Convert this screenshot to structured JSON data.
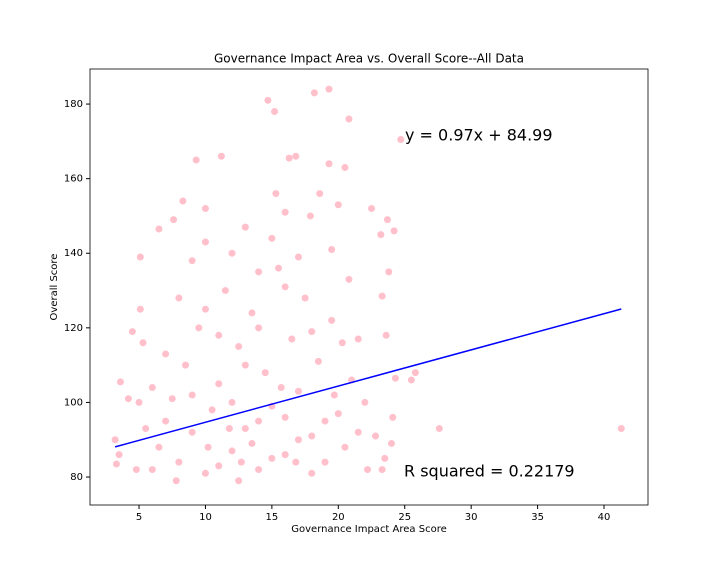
{
  "chart_data": {
    "type": "scatter",
    "title": "Governance Impact Area vs. Overall Score--All Data",
    "x_label": "Governance Impact Area Score",
    "y_label": "Overall Score",
    "color": "#ffc0cb",
    "x": [
      41.3,
      27.6,
      24.7,
      19.3,
      18.2,
      14.7,
      15.2,
      20.8,
      9.3,
      11.2,
      16.8,
      16.3,
      19.3,
      20.5,
      15.3,
      18.6,
      20,
      22.5,
      23.7,
      24.2,
      23.2,
      6.5,
      7.6,
      8.3,
      10,
      3.6,
      3.2,
      3.3,
      3.5,
      4.2,
      4.5,
      5.1,
      5.1,
      5.3,
      25.5,
      25.8,
      22.2,
      23.3,
      23.5,
      24,
      22.8,
      24.1,
      24.3,
      23.6,
      23.3,
      23.8,
      21.5,
      20.8,
      19.5,
      17.9,
      16,
      6,
      6.5,
      7,
      7.5,
      8,
      8.5,
      9,
      9.5,
      10,
      10.5,
      11,
      11.5,
      12,
      12.5,
      13,
      13.5,
      14,
      14.5,
      15,
      15.5,
      16,
      16.5,
      17,
      17.5,
      18,
      18.5,
      19,
      19.5,
      20,
      20.5,
      21,
      8,
      9,
      10,
      11,
      12,
      13,
      14,
      15,
      16,
      17,
      18,
      19,
      7,
      6,
      5.5,
      4.8,
      5,
      12,
      13,
      14,
      15,
      11,
      10,
      9,
      17,
      18,
      16,
      14,
      12.7,
      15.7,
      13.5,
      11.8,
      10.2,
      16.8,
      19.7,
      20.3,
      21.5,
      22,
      7.8,
      12.5
    ],
    "y": [
      93,
      93,
      170.5,
      184,
      183,
      181,
      178,
      176,
      165,
      166,
      166,
      165.5,
      164,
      163,
      156,
      156,
      153,
      152,
      149,
      146,
      145,
      146.5,
      149,
      154,
      152,
      105.5,
      90,
      83.5,
      86,
      101,
      119,
      139,
      125,
      116,
      106,
      108,
      82,
      82,
      85,
      89,
      91,
      96,
      106.5,
      118,
      128.5,
      135,
      117,
      133,
      141,
      150,
      151,
      82,
      88,
      95,
      101,
      84,
      110,
      92,
      120,
      81,
      98,
      105,
      130,
      87,
      115,
      93,
      124,
      82,
      108,
      99,
      136,
      86,
      117,
      103,
      128,
      91,
      111,
      84,
      122,
      97,
      88,
      106,
      128,
      138,
      143,
      83,
      140,
      147,
      135,
      144,
      131,
      139,
      119,
      95,
      113,
      104,
      93,
      82,
      100,
      100,
      110,
      95,
      85,
      118,
      125,
      102,
      90,
      81,
      96,
      120,
      84,
      104,
      89,
      93,
      88,
      84,
      102,
      116,
      92,
      100,
      79,
      79
    ],
    "fit": {
      "x": [
        3.2,
        41.3
      ],
      "y": [
        88.09,
        125.05
      ],
      "color": "#0000ff"
    },
    "annotations": [
      "y = 0.97x + 84.99",
      "R squared = 0.22179"
    ],
    "xlim": [
      1.31,
      43.31
    ],
    "ylim": [
      72.5,
      189.4
    ],
    "xticks": [
      5,
      10,
      15,
      20,
      25,
      30,
      35,
      40
    ],
    "yticks": [
      80,
      100,
      120,
      140,
      160,
      180
    ]
  }
}
